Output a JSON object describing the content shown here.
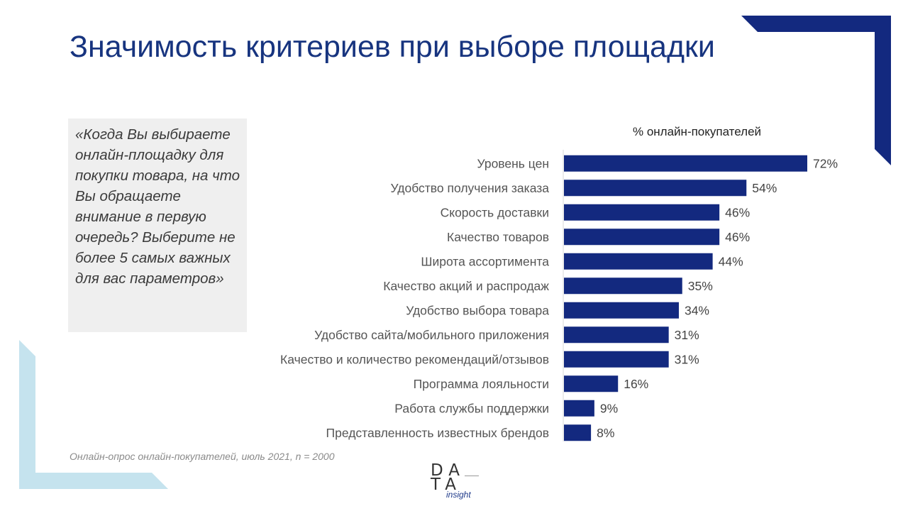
{
  "title": "Значимость критериев при выборе площадки",
  "question": "«Когда Вы выбираете онлайн-площадку для покупки товара, на что Вы обращаете внимание в первую очередь? Выберите не более 5 самых важных для вас параметров»",
  "footnote": "Онлайн-опрос онлайн-покупателей, июль 2021, n = 2000",
  "logo": {
    "line1": "DA",
    "line2": "TA",
    "sub": "insight"
  },
  "colors": {
    "bar": "#13297f",
    "title": "#17347f",
    "accent_light": "#c5e3ee"
  },
  "chart_data": {
    "type": "bar",
    "orientation": "horizontal",
    "subtitle": "% онлайн-покупателей",
    "categories": [
      "Уровень цен",
      "Удобство получения заказа",
      "Скорость доставки",
      "Качество товаров",
      "Широта ассортимента",
      "Качество акций и распродаж",
      "Удобство выбора товара",
      "Удобство сайта/мобильного приложения",
      "Качество и количество рекомендаций/отзывов",
      "Программа лояльности",
      "Работа службы поддержки",
      "Представленность известных брендов"
    ],
    "values": [
      72,
      54,
      46,
      46,
      44,
      35,
      34,
      31,
      31,
      16,
      9,
      8
    ],
    "value_labels": [
      "72%",
      "54%",
      "46%",
      "46%",
      "44%",
      "35%",
      "34%",
      "31%",
      "31%",
      "16%",
      "9%",
      "8%"
    ],
    "xlim": [
      0,
      100
    ],
    "unit": "%"
  }
}
